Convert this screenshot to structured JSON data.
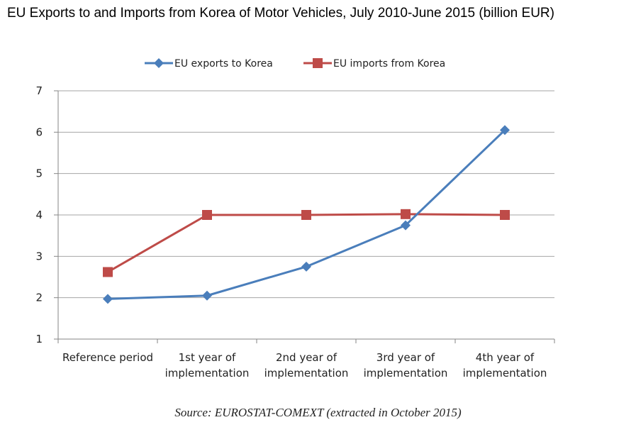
{
  "title": "EU Exports to and Imports from Korea of Motor Vehicles, July 2010-June 2015 (billion EUR)",
  "source": "Source: EUROSTAT-COMEXT (extracted in October 2015)",
  "chart_data": {
    "type": "line",
    "title": "EU Exports to and Imports from Korea of Motor Vehicles, July 2010-June 2015 (billion EUR)",
    "categories": [
      [
        "Reference period"
      ],
      [
        "1st year of",
        "implementation"
      ],
      [
        "2nd year of",
        "implementation"
      ],
      [
        "3rd year of",
        "implementation"
      ],
      [
        "4th year of",
        "implementation"
      ]
    ],
    "series": [
      {
        "name": "EU exports to Korea",
        "color": "#4a7ebb",
        "marker": "diamond",
        "values": [
          1.97,
          2.05,
          2.75,
          3.75,
          6.05
        ]
      },
      {
        "name": "EU imports from Korea",
        "color": "#be4b48",
        "marker": "square",
        "values": [
          2.62,
          4.0,
          4.0,
          4.02,
          4.0
        ]
      }
    ],
    "ylim": [
      1,
      7
    ],
    "yticks": [
      "1",
      "2",
      "3",
      "4",
      "5",
      "6",
      "7"
    ],
    "xlabel": "",
    "ylabel": "",
    "grid": true,
    "legend_position": "top-center"
  }
}
